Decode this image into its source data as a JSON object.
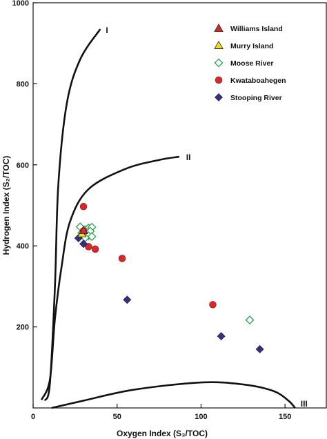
{
  "chart_data": {
    "type": "scatter",
    "xlabel": "Oxygen Index (S₃/TOC)",
    "ylabel": "Hydrogen Index (S₂/TOC)",
    "xlim": [
      0,
      175
    ],
    "ylim": [
      0,
      1000
    ],
    "x_ticks": [
      0,
      50,
      100,
      150
    ],
    "y_ticks": [
      200,
      400,
      600,
      800,
      1000
    ],
    "grid": false,
    "legend_position": "top-right",
    "series": [
      {
        "name": "Williams Island",
        "marker": "triangle",
        "color": "#d62a2a",
        "fill": "#d62a2a",
        "points": [
          [
            30,
            438
          ]
        ]
      },
      {
        "name": "Murry Island",
        "marker": "triangle",
        "color": "#b89a00",
        "fill": "#f2dc1e",
        "points": [
          [
            29,
            430
          ]
        ]
      },
      {
        "name": "Moose River",
        "marker": "diamond-open",
        "color": "#2aa24a",
        "fill": "none",
        "points": [
          [
            28,
            447
          ],
          [
            31,
            440
          ],
          [
            33,
            444
          ],
          [
            35,
            446
          ],
          [
            29,
            432
          ],
          [
            32,
            434
          ],
          [
            34,
            436
          ],
          [
            30,
            428
          ],
          [
            33,
            425
          ],
          [
            35,
            423
          ],
          [
            31,
            420
          ],
          [
            129,
            217
          ]
        ]
      },
      {
        "name": "Kwataboahegen",
        "marker": "circle",
        "color": "#d62a2a",
        "fill": "#d62a2a",
        "points": [
          [
            30,
            497
          ],
          [
            30,
            437
          ],
          [
            33,
            398
          ],
          [
            37,
            392
          ],
          [
            53,
            369
          ],
          [
            107,
            255
          ]
        ]
      },
      {
        "name": "Stooping River",
        "marker": "diamond",
        "color": "#36307f",
        "fill": "#36307f",
        "points": [
          [
            27,
            419
          ],
          [
            30,
            405
          ],
          [
            56,
            267
          ],
          [
            112,
            177
          ],
          [
            135,
            145
          ]
        ]
      }
    ],
    "curves": [
      {
        "label": "I",
        "points": [
          [
            7,
            18
          ],
          [
            10,
            60
          ],
          [
            13,
            300
          ],
          [
            15,
            550
          ],
          [
            20,
            750
          ],
          [
            28,
            860
          ],
          [
            40,
            935
          ]
        ]
      },
      {
        "label": "II",
        "points": [
          [
            5,
            20
          ],
          [
            10,
            70
          ],
          [
            13,
            220
          ],
          [
            17,
            350
          ],
          [
            22,
            460
          ],
          [
            33,
            540
          ],
          [
            55,
            590
          ],
          [
            75,
            612
          ],
          [
            87,
            620
          ]
        ]
      },
      {
        "label": "III",
        "points": [
          [
            11,
            0
          ],
          [
            30,
            18
          ],
          [
            60,
            45
          ],
          [
            100,
            63
          ],
          [
            125,
            58
          ],
          [
            143,
            42
          ],
          [
            152,
            18
          ],
          [
            156,
            0
          ]
        ]
      }
    ]
  }
}
